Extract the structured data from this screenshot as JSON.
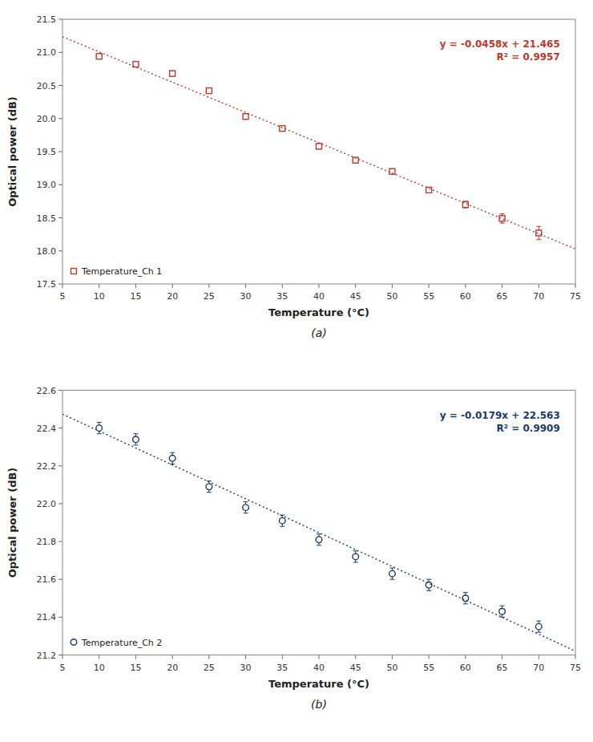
{
  "chart_data": [
    {
      "type": "scatter",
      "title": "(a)",
      "xlabel": "Temperature (°C)",
      "ylabel": "Optical power (dB)",
      "annotations": [
        "y = -0.0458x + 21.465",
        "R² = 0.9957"
      ],
      "legend": "lower left",
      "grid": false,
      "xlim": [
        5,
        75
      ],
      "ylim": [
        17.5,
        21.5
      ],
      "xticks": [
        5,
        10,
        15,
        20,
        25,
        30,
        35,
        40,
        45,
        50,
        55,
        60,
        65,
        70,
        75
      ],
      "yticks": [
        17.5,
        {
          "value": 18.0,
          "label": "18.0"
        },
        18.5,
        {
          "value": 19.0,
          "label": "19.0"
        },
        19.5,
        {
          "value": 20.0,
          "label": "20.0"
        },
        20.5,
        {
          "value": 21.0,
          "label": "21.0"
        },
        21.5
      ],
      "series": [
        {
          "name": "Temperature_Ch 1",
          "type": "scatter",
          "color": "#c0392b",
          "marker": "square",
          "x": [
            10,
            15,
            20,
            25,
            30,
            35,
            40,
            45,
            50,
            55,
            60,
            65,
            70
          ],
          "values": [
            20.94,
            20.82,
            20.68,
            20.42,
            20.03,
            19.85,
            19.58,
            19.37,
            19.2,
            18.92,
            18.7,
            18.49,
            18.27
          ],
          "errors": [
            0.04,
            0.04,
            0.04,
            0.04,
            0.04,
            0.04,
            0.04,
            0.04,
            0.04,
            0.04,
            0.05,
            0.07,
            0.1
          ]
        },
        {
          "type": "line",
          "color": "#c0392b",
          "line_style": "dotted",
          "x": [
            5,
            75
          ],
          "values": [
            21.236,
            18.03
          ]
        }
      ]
    },
    {
      "type": "scatter",
      "title": "(b)",
      "xlabel": "Temperature (°C)",
      "ylabel": "Optical power (dB)",
      "annotations": [
        "y = -0.0179x + 22.563",
        "R² = 0.9909"
      ],
      "legend": "lower left",
      "grid": false,
      "xlim": [
        5,
        75
      ],
      "ylim": [
        21.2,
        22.6
      ],
      "xticks": [
        5,
        10,
        15,
        20,
        25,
        30,
        35,
        40,
        45,
        50,
        55,
        60,
        65,
        70,
        75
      ],
      "yticks": [
        21.2,
        21.4,
        21.6,
        21.8,
        {
          "value": 22.0,
          "label": "22.0"
        },
        22.2,
        22.4,
        22.6
      ],
      "series": [
        {
          "name": "Temperature_Ch 2",
          "type": "scatter",
          "color": "#1a3a6b",
          "marker": "circle",
          "x": [
            10,
            15,
            20,
            25,
            30,
            35,
            40,
            45,
            50,
            55,
            60,
            65,
            70
          ],
          "values": [
            22.4,
            22.34,
            22.24,
            22.09,
            21.98,
            21.91,
            21.81,
            21.72,
            21.63,
            21.57,
            21.5,
            21.43,
            21.35
          ],
          "errors": [
            0.03,
            0.03,
            0.03,
            0.03,
            0.03,
            0.03,
            0.03,
            0.03,
            0.03,
            0.03,
            0.03,
            0.03,
            0.03
          ]
        },
        {
          "type": "line",
          "color": "#1a3a6b",
          "line_style": "dotted",
          "x": [
            5,
            75
          ],
          "values": [
            22.4735,
            21.2205
          ]
        }
      ]
    }
  ]
}
